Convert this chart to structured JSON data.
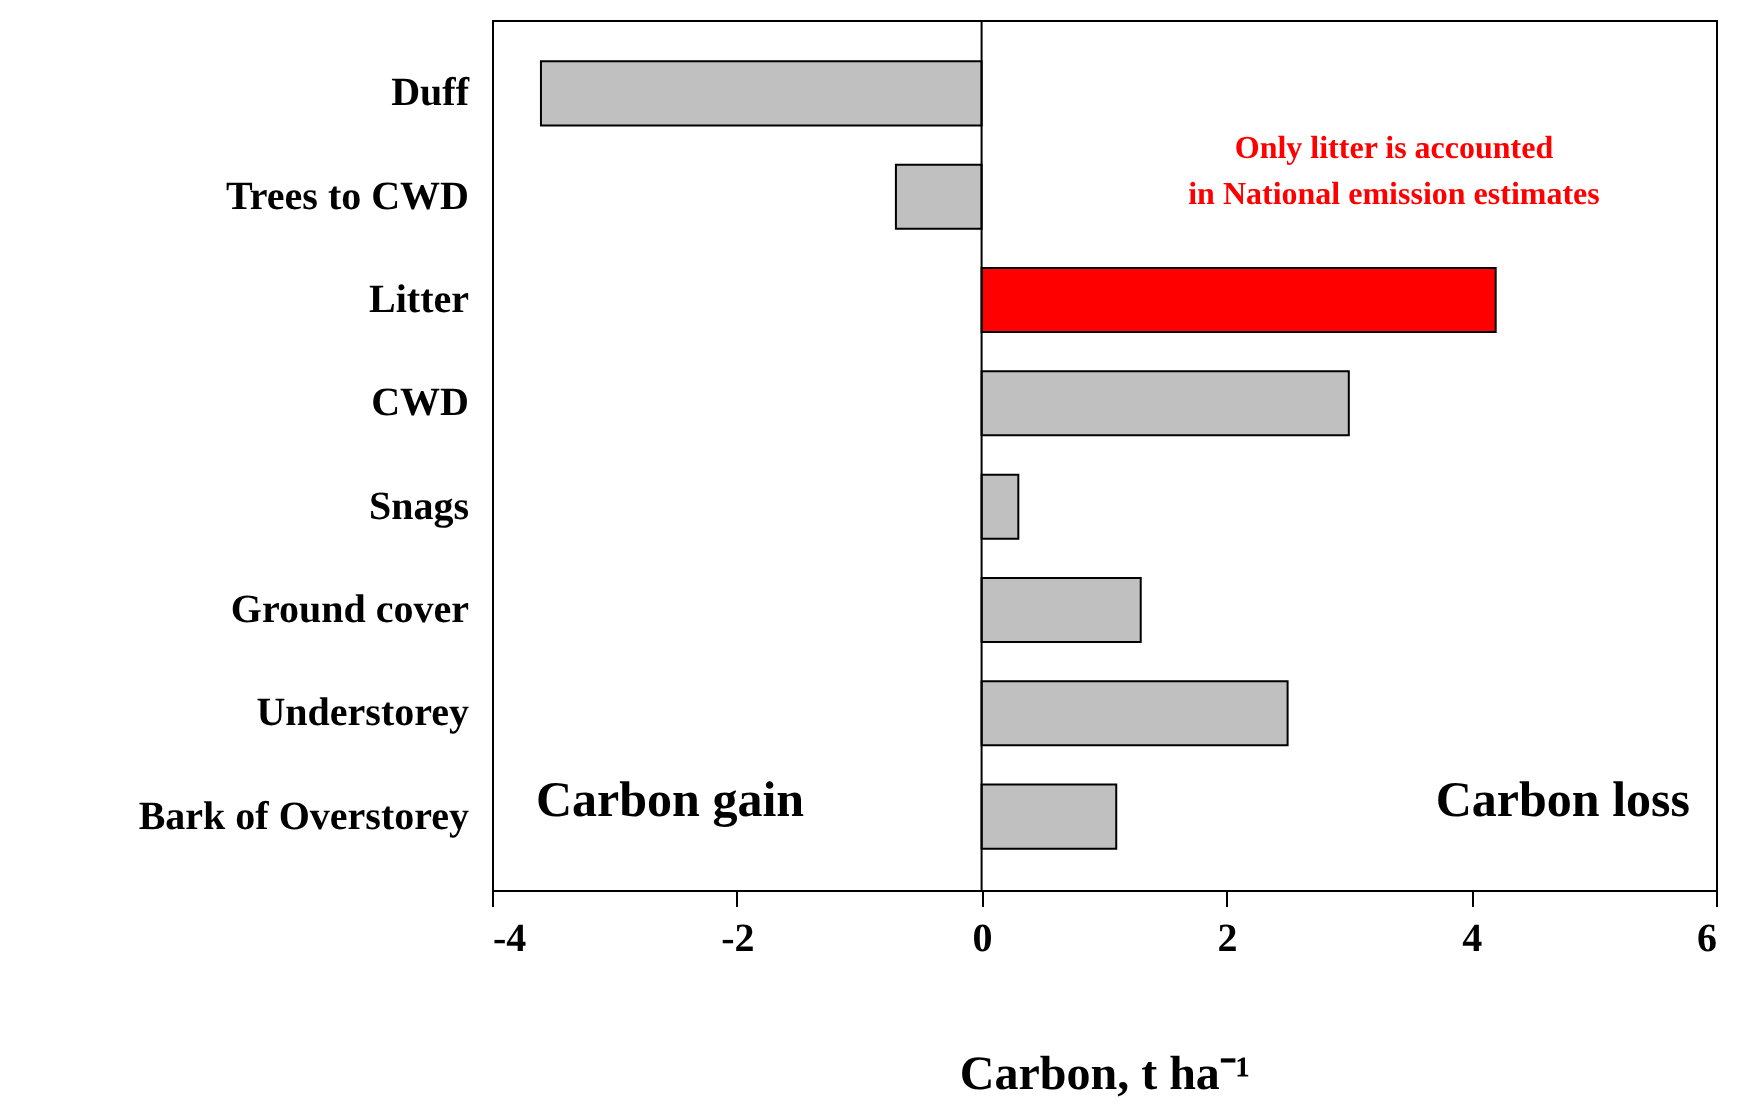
{
  "chart_data": {
    "type": "bar",
    "orientation": "horizontal",
    "xlabel": "Carbon, t ha⁻¹",
    "categories": [
      "Duff",
      "Trees to CWD",
      "Litter",
      "CWD",
      "Snags",
      "Ground cover",
      "Understorey",
      "Bark of Overstorey"
    ],
    "values": [
      -3.6,
      -0.7,
      4.2,
      3.0,
      0.3,
      1.3,
      2.5,
      1.1
    ],
    "colors": [
      "#c0c0c0",
      "#c0c0c0",
      "#ff0000",
      "#c0c0c0",
      "#c0c0c0",
      "#c0c0c0",
      "#c0c0c0",
      "#c0c0c0"
    ],
    "xlim": [
      -4,
      6
    ],
    "xticks": [
      -4,
      -2,
      0,
      2,
      4,
      6
    ],
    "grid": false,
    "ref_lines": [
      {
        "axis": "x",
        "value": 0
      }
    ],
    "annotations": [
      "Only litter is accounted\nin National emission estimates",
      "Carbon gain",
      "Carbon loss"
    ]
  }
}
